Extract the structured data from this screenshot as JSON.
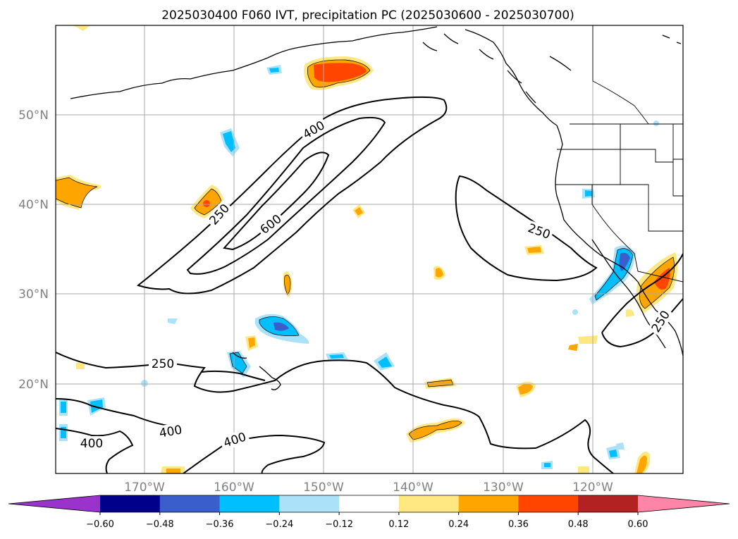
{
  "title": "2025030400 F060 IVT, precipitation PC (2025030600 - 2025030700)",
  "lat_labels": [
    "50°N",
    "40°N",
    "30°N",
    "20°N"
  ],
  "lon_labels": [
    "170°W",
    "160°W",
    "150°W",
    "140°W",
    "130°W",
    "120°W"
  ],
  "contour_labels": [
    "400",
    "250",
    "600",
    "250",
    "250",
    "250",
    "400",
    "400",
    "400"
  ],
  "colorbar": {
    "colors": [
      "#9933cc",
      "#00008b",
      "#3a5fcd",
      "#00bfff",
      "#ace1fa",
      "#ffffff",
      "#ffe882",
      "#ffa500",
      "#ff4500",
      "#b22222",
      "#ff85a8"
    ],
    "tick_labels": [
      "−0.60",
      "−0.48",
      "−0.36",
      "−0.24",
      "−0.12",
      "0.12",
      "0.24",
      "0.36",
      "0.48",
      "0.60"
    ],
    "extend": "both"
  }
}
